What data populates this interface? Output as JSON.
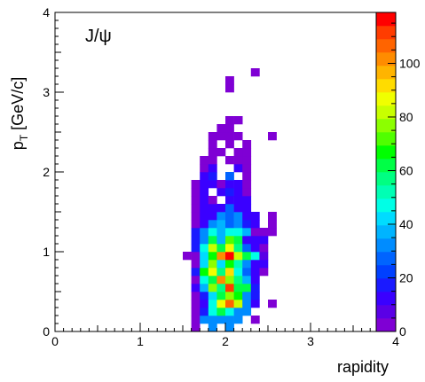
{
  "chart_data": {
    "type": "heatmap",
    "annotation": "J/ψ",
    "xlabel": "rapidity",
    "ylabel_main": "p",
    "ylabel_sub": "T",
    "ylabel_rest": " [GeV/c]",
    "xlim": [
      0,
      4
    ],
    "ylim": [
      0,
      4
    ],
    "x_ticks": [
      "0",
      "1",
      "2",
      "3",
      "4"
    ],
    "y_ticks": [
      "0",
      "1",
      "2",
      "3",
      "4"
    ],
    "bin_width": 0.1,
    "zlim": [
      0,
      119
    ],
    "colorbar_ticks": [
      "0",
      "20",
      "40",
      "60",
      "80",
      "100"
    ],
    "palette": [
      "#7F00D4",
      "#5A00E6",
      "#3A00FF",
      "#1A1AFF",
      "#0040FF",
      "#0064FF",
      "#008CFF",
      "#00B4FF",
      "#00DCFF",
      "#00FFE6",
      "#00FFB4",
      "#00FF82",
      "#00FF46",
      "#00FF00",
      "#50FF00",
      "#8CFF00",
      "#C8FF00",
      "#F0FF00",
      "#FFDC00",
      "#FFB400",
      "#FF8C00",
      "#FF6400",
      "#FF3C00",
      "#FF0000"
    ],
    "bins": [
      [
        1.6,
        0.0,
        3
      ],
      [
        1.8,
        0.0,
        30
      ],
      [
        2.0,
        0.0,
        30
      ],
      [
        1.6,
        0.1,
        3
      ],
      [
        1.7,
        0.1,
        30
      ],
      [
        1.8,
        0.1,
        30
      ],
      [
        1.9,
        0.1,
        30
      ],
      [
        2.0,
        0.1,
        30
      ],
      [
        2.1,
        0.1,
        30
      ],
      [
        2.3,
        0.1,
        3
      ],
      [
        1.6,
        0.2,
        3
      ],
      [
        1.7,
        0.2,
        18
      ],
      [
        1.8,
        0.2,
        45
      ],
      [
        1.9,
        0.2,
        60
      ],
      [
        2.0,
        0.2,
        45
      ],
      [
        2.1,
        0.2,
        30
      ],
      [
        2.2,
        0.2,
        30
      ],
      [
        1.6,
        0.3,
        3
      ],
      [
        1.7,
        0.3,
        12
      ],
      [
        1.8,
        0.3,
        48
      ],
      [
        1.9,
        0.3,
        85
      ],
      [
        2.0,
        0.3,
        105
      ],
      [
        2.1,
        0.3,
        80
      ],
      [
        2.2,
        0.3,
        30
      ],
      [
        2.3,
        0.3,
        10
      ],
      [
        2.5,
        0.3,
        3
      ],
      [
        1.6,
        0.4,
        3
      ],
      [
        1.7,
        0.4,
        18
      ],
      [
        1.8,
        0.4,
        40
      ],
      [
        1.9,
        0.4,
        60
      ],
      [
        2.0,
        0.4,
        75
      ],
      [
        2.1,
        0.4,
        65
      ],
      [
        2.2,
        0.4,
        30
      ],
      [
        2.3,
        0.4,
        18
      ],
      [
        1.6,
        0.5,
        10
      ],
      [
        1.7,
        0.5,
        38
      ],
      [
        1.8,
        0.5,
        75
      ],
      [
        1.9,
        0.5,
        55
      ],
      [
        2.0,
        0.5,
        110
      ],
      [
        2.1,
        0.5,
        60
      ],
      [
        2.2,
        0.5,
        60
      ],
      [
        2.3,
        0.5,
        18
      ],
      [
        1.6,
        0.6,
        3
      ],
      [
        1.7,
        0.6,
        45
      ],
      [
        1.8,
        0.6,
        60
      ],
      [
        1.9,
        0.6,
        100
      ],
      [
        2.0,
        0.6,
        75
      ],
      [
        2.1,
        0.6,
        55
      ],
      [
        2.2,
        0.6,
        38
      ],
      [
        2.3,
        0.6,
        10
      ],
      [
        1.6,
        0.7,
        18
      ],
      [
        1.7,
        0.7,
        65
      ],
      [
        1.8,
        0.7,
        85
      ],
      [
        1.9,
        0.7,
        55
      ],
      [
        2.0,
        0.7,
        92
      ],
      [
        2.1,
        0.7,
        45
      ],
      [
        2.2,
        0.7,
        25
      ],
      [
        2.3,
        0.7,
        10
      ],
      [
        2.4,
        0.7,
        3
      ],
      [
        1.6,
        0.8,
        3
      ],
      [
        1.7,
        0.8,
        40
      ],
      [
        1.8,
        0.8,
        75
      ],
      [
        1.9,
        0.8,
        40
      ],
      [
        2.0,
        0.8,
        65
      ],
      [
        2.1,
        0.8,
        50
      ],
      [
        2.2,
        0.8,
        30
      ],
      [
        2.3,
        0.8,
        14
      ],
      [
        2.4,
        0.8,
        10
      ],
      [
        1.5,
        0.9,
        3
      ],
      [
        1.6,
        0.9,
        3
      ],
      [
        1.7,
        0.9,
        40
      ],
      [
        1.8,
        0.9,
        65
      ],
      [
        1.9,
        0.9,
        100
      ],
      [
        2.0,
        0.9,
        119
      ],
      [
        2.1,
        0.9,
        80
      ],
      [
        2.2,
        0.9,
        60
      ],
      [
        2.3,
        0.9,
        45
      ],
      [
        2.4,
        0.9,
        8
      ],
      [
        1.6,
        1.0,
        18
      ],
      [
        1.7,
        1.0,
        45
      ],
      [
        1.8,
        1.0,
        80
      ],
      [
        1.9,
        1.0,
        62
      ],
      [
        2.0,
        1.0,
        85
      ],
      [
        2.1,
        1.0,
        55
      ],
      [
        2.2,
        1.0,
        28
      ],
      [
        2.3,
        1.0,
        14
      ],
      [
        2.4,
        1.0,
        3
      ],
      [
        1.6,
        1.1,
        18
      ],
      [
        1.7,
        1.1,
        30
      ],
      [
        1.8,
        1.1,
        62
      ],
      [
        1.9,
        1.1,
        35
      ],
      [
        2.0,
        1.1,
        70
      ],
      [
        2.1,
        1.1,
        62
      ],
      [
        2.2,
        1.1,
        14
      ],
      [
        2.3,
        1.1,
        14
      ],
      [
        2.4,
        1.1,
        10
      ],
      [
        1.6,
        1.2,
        18
      ],
      [
        1.7,
        1.2,
        30
      ],
      [
        1.8,
        1.2,
        45
      ],
      [
        1.9,
        1.2,
        38
      ],
      [
        2.0,
        1.2,
        45
      ],
      [
        2.1,
        1.2,
        45
      ],
      [
        2.2,
        1.2,
        38
      ],
      [
        2.3,
        1.2,
        3
      ],
      [
        2.4,
        1.2,
        3
      ],
      [
        2.5,
        1.2,
        3
      ],
      [
        1.6,
        1.3,
        3
      ],
      [
        1.7,
        1.3,
        14
      ],
      [
        1.8,
        1.3,
        30
      ],
      [
        1.9,
        1.3,
        38
      ],
      [
        2.0,
        1.3,
        25
      ],
      [
        2.1,
        1.3,
        30
      ],
      [
        2.2,
        1.3,
        18
      ],
      [
        2.3,
        1.3,
        10
      ],
      [
        2.5,
        1.3,
        3
      ],
      [
        1.6,
        1.4,
        3
      ],
      [
        1.7,
        1.4,
        14
      ],
      [
        1.8,
        1.4,
        14
      ],
      [
        1.9,
        1.4,
        30
      ],
      [
        2.0,
        1.4,
        25
      ],
      [
        2.1,
        1.4,
        30
      ],
      [
        2.2,
        1.4,
        14
      ],
      [
        2.3,
        1.4,
        10
      ],
      [
        2.5,
        1.4,
        3
      ],
      [
        1.6,
        1.5,
        3
      ],
      [
        1.7,
        1.5,
        10
      ],
      [
        1.8,
        1.5,
        14
      ],
      [
        1.9,
        1.5,
        10
      ],
      [
        2.0,
        1.5,
        25
      ],
      [
        2.1,
        1.5,
        14
      ],
      [
        2.2,
        1.5,
        14
      ],
      [
        1.6,
        1.6,
        3
      ],
      [
        1.7,
        1.6,
        10
      ],
      [
        1.8,
        1.6,
        3
      ],
      [
        2.0,
        1.6,
        10
      ],
      [
        2.1,
        1.6,
        14
      ],
      [
        2.2,
        1.6,
        10
      ],
      [
        1.6,
        1.7,
        3
      ],
      [
        1.7,
        1.7,
        10
      ],
      [
        1.9,
        1.7,
        14
      ],
      [
        2.0,
        1.7,
        18
      ],
      [
        2.1,
        1.7,
        10
      ],
      [
        2.2,
        1.7,
        3
      ],
      [
        1.6,
        1.8,
        3
      ],
      [
        1.7,
        1.8,
        10
      ],
      [
        1.8,
        1.8,
        14
      ],
      [
        1.9,
        1.8,
        3
      ],
      [
        2.0,
        1.8,
        14
      ],
      [
        2.1,
        1.8,
        10
      ],
      [
        2.2,
        1.8,
        3
      ],
      [
        1.7,
        1.9,
        10
      ],
      [
        1.8,
        1.9,
        18
      ],
      [
        2.0,
        1.9,
        25
      ],
      [
        2.2,
        1.9,
        3
      ],
      [
        1.7,
        2.0,
        3
      ],
      [
        1.8,
        2.0,
        10
      ],
      [
        2.1,
        2.0,
        14
      ],
      [
        2.2,
        2.0,
        3
      ],
      [
        1.7,
        2.1,
        3
      ],
      [
        1.8,
        2.1,
        3
      ],
      [
        2.0,
        2.1,
        3
      ],
      [
        2.1,
        2.1,
        3
      ],
      [
        2.2,
        2.1,
        3
      ],
      [
        1.8,
        2.2,
        3
      ],
      [
        1.9,
        2.2,
        3
      ],
      [
        2.1,
        2.2,
        3
      ],
      [
        2.2,
        2.2,
        3
      ],
      [
        1.8,
        2.3,
        3
      ],
      [
        2.0,
        2.3,
        3
      ],
      [
        2.2,
        2.3,
        3
      ],
      [
        1.8,
        2.4,
        3
      ],
      [
        1.9,
        2.4,
        3
      ],
      [
        2.0,
        2.4,
        3
      ],
      [
        2.1,
        2.4,
        3
      ],
      [
        2.5,
        2.4,
        3
      ],
      [
        1.9,
        2.5,
        3
      ],
      [
        2.0,
        2.5,
        3
      ],
      [
        2.0,
        2.6,
        3
      ],
      [
        2.1,
        2.6,
        3
      ],
      [
        2.0,
        3.0,
        3
      ],
      [
        2.0,
        3.1,
        3
      ],
      [
        2.3,
        3.2,
        3
      ]
    ]
  }
}
